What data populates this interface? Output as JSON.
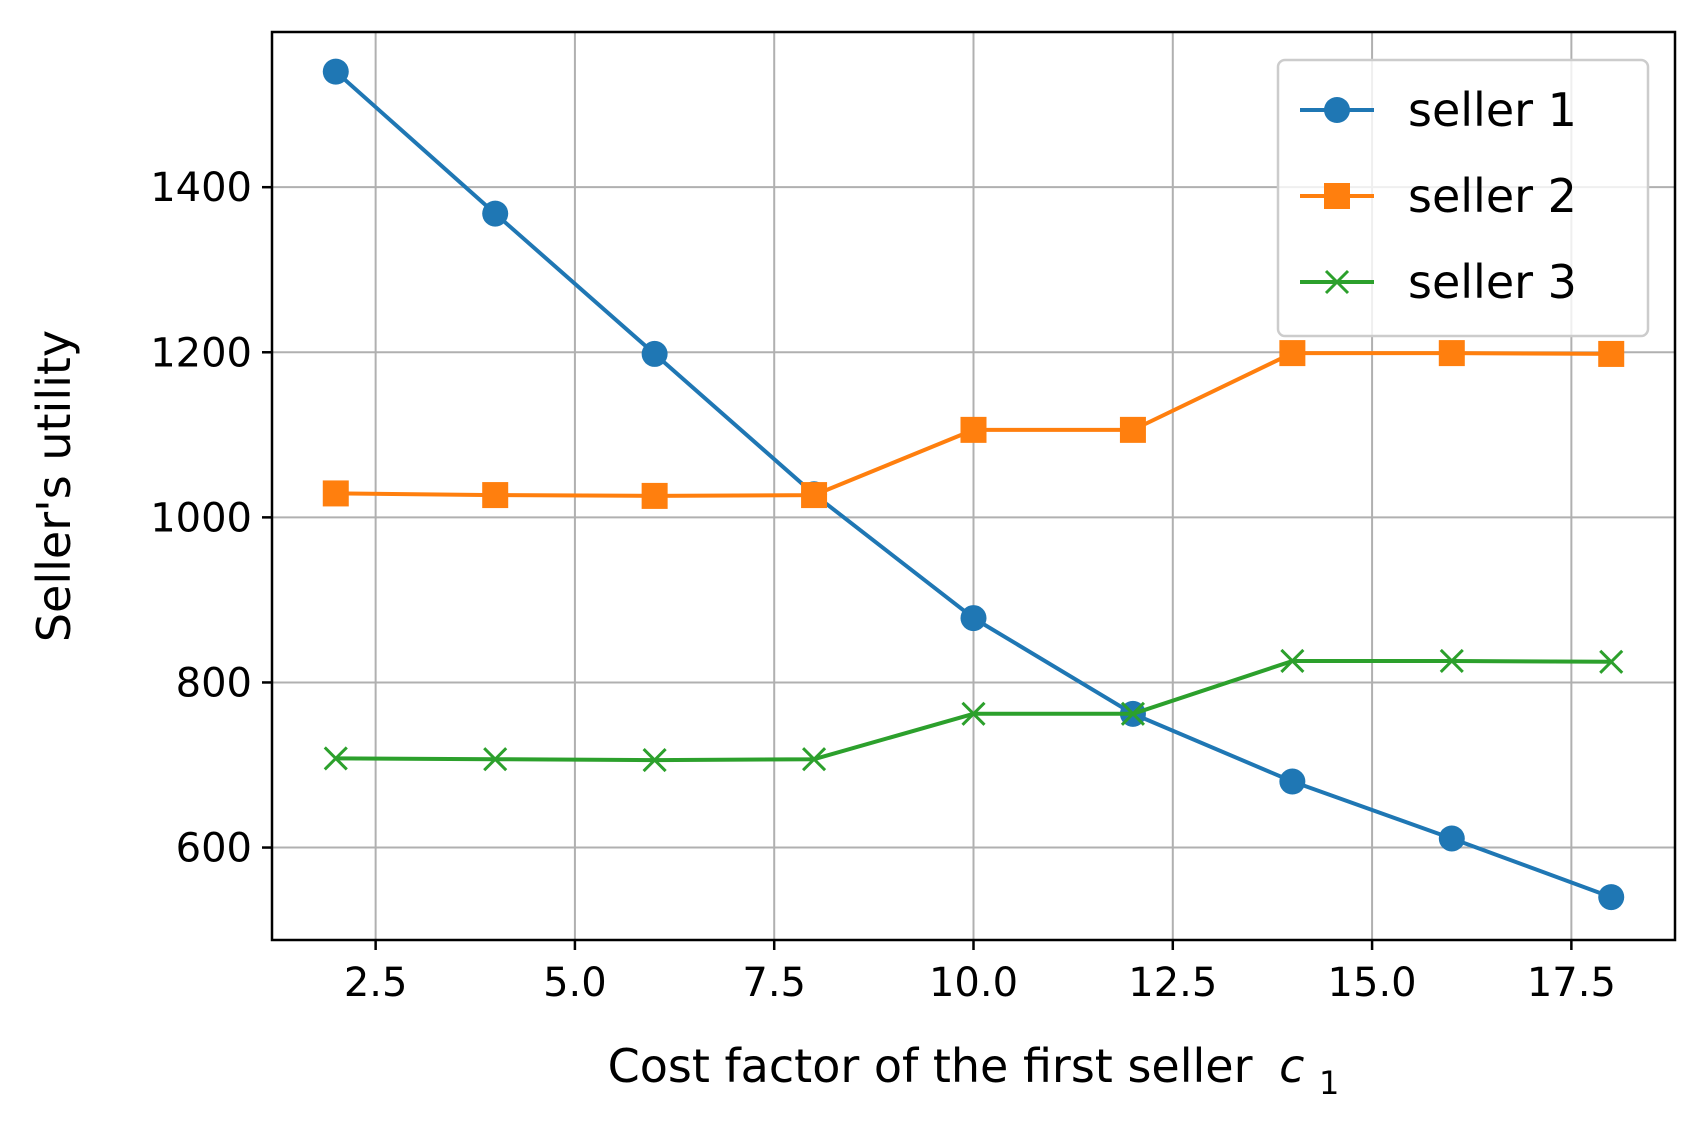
{
  "chart_data": {
    "type": "line",
    "title": "",
    "xlabel": "Cost factor of the first seller",
    "xlabel_math": {
      "base": "c",
      "subscript": "1"
    },
    "ylabel": "Seller's utility",
    "xlim": [
      1.2,
      18.8
    ],
    "ylim": [
      488,
      1588
    ],
    "xticks": [
      2.5,
      5.0,
      7.5,
      10.0,
      12.5,
      15.0,
      17.5
    ],
    "xtick_labels": [
      "2.5",
      "5.0",
      "7.5",
      "10.0",
      "12.5",
      "15.0",
      "17.5"
    ],
    "yticks": [
      600,
      800,
      1000,
      1200,
      1400
    ],
    "ytick_labels": [
      "600",
      "800",
      "1000",
      "1200",
      "1400"
    ],
    "grid": true,
    "legend_position": "top-right",
    "x": [
      2,
      4,
      6,
      8,
      10,
      12,
      14,
      16,
      18
    ],
    "series": [
      {
        "name": "seller 1",
        "color": "#1f77b4",
        "marker": "circle",
        "values": [
          1540,
          1368,
          1198,
          1028,
          878,
          762,
          680,
          611,
          540
        ]
      },
      {
        "name": "seller 2",
        "color": "#ff7f0e",
        "marker": "square",
        "values": [
          1029,
          1027,
          1026,
          1027,
          1106,
          1106,
          1199,
          1199,
          1198
        ]
      },
      {
        "name": "seller 3",
        "color": "#2ca02c",
        "marker": "x",
        "values": [
          708,
          707,
          706,
          707,
          762,
          762,
          826,
          826,
          825
        ]
      }
    ]
  }
}
